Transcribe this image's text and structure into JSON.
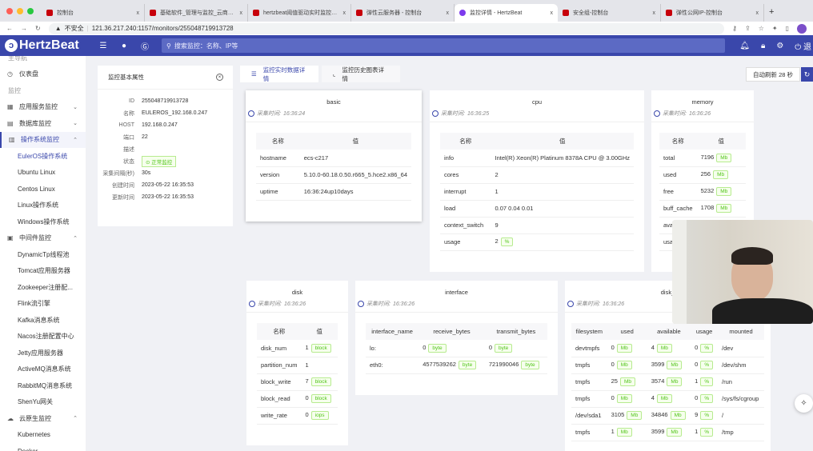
{
  "browser": {
    "tabs": [
      {
        "title": "控制台",
        "active": false
      },
      {
        "title": "基础软件_管理与监控_云商店-华",
        "active": false
      },
      {
        "title": "hertzbeat阈值驱动实时监控_监控",
        "active": false
      },
      {
        "title": "弹性云服务器 - 控制台",
        "active": false
      },
      {
        "title": "监控详情 - HertzBeat",
        "active": true
      },
      {
        "title": "安全组-控制台",
        "active": false
      },
      {
        "title": "弹性公网IP-控制台",
        "active": false
      }
    ],
    "close_glyph": "x",
    "new_tab": "+",
    "security_label": "不安全",
    "url": "121.36.217.240:1157/monitors/255048719913728"
  },
  "header": {
    "logo_text": "HertzBeat",
    "search_placeholder": "搜索监控：名称、IP等",
    "logout_partial": "退"
  },
  "sidebar": {
    "items": [
      {
        "label": "主导航",
        "type": "group"
      },
      {
        "label": "仪表盘",
        "type": "top",
        "icon": "dashboard-icon"
      },
      {
        "label": "监控",
        "type": "group"
      },
      {
        "label": "应用服务监控",
        "type": "top",
        "icon": "apps-icon",
        "chevron": "down"
      },
      {
        "label": "数据库监控",
        "type": "top",
        "icon": "database-icon",
        "chevron": "down"
      },
      {
        "label": "操作系统监控",
        "type": "top",
        "icon": "os-icon",
        "chevron": "up",
        "open": true
      },
      {
        "label": "EulerOS操作系统",
        "type": "sub",
        "selected": true
      },
      {
        "label": "Ubuntu Linux",
        "type": "sub"
      },
      {
        "label": "Centos Linux",
        "type": "sub"
      },
      {
        "label": "Linux操作系统",
        "type": "sub"
      },
      {
        "label": "Windows操作系统",
        "type": "sub"
      },
      {
        "label": "中间件监控",
        "type": "top",
        "icon": "middleware-icon",
        "chevron": "up"
      },
      {
        "label": "DynamicTp线程池",
        "type": "sub"
      },
      {
        "label": "Tomcat应用服务器",
        "type": "sub"
      },
      {
        "label": "Zookeeper注册配...",
        "type": "sub"
      },
      {
        "label": "Flink流引擎",
        "type": "sub"
      },
      {
        "label": "Kafka消息系统",
        "type": "sub"
      },
      {
        "label": "Nacos注册配置中心",
        "type": "sub"
      },
      {
        "label": "Jetty应用服务器",
        "type": "sub"
      },
      {
        "label": "ActiveMQ消息系统",
        "type": "sub"
      },
      {
        "label": "RabbitMQ消息系统",
        "type": "sub"
      },
      {
        "label": "ShenYu网关",
        "type": "sub"
      },
      {
        "label": "云原生监控",
        "type": "top",
        "icon": "cloud-icon",
        "chevron": "up"
      },
      {
        "label": "Kubernetes",
        "type": "sub"
      },
      {
        "label": "Docker",
        "type": "sub"
      }
    ]
  },
  "info": {
    "title": "监控基本属性",
    "rows": [
      {
        "key": "ID",
        "value": "255048719913728"
      },
      {
        "key": "名称",
        "value": "EULEROS_192.168.0.247"
      },
      {
        "key": "HOST",
        "value": "192.168.0.247"
      },
      {
        "key": "端口",
        "value": "22"
      },
      {
        "key": "描述",
        "value": ""
      },
      {
        "key": "状态",
        "value": "正常监控",
        "badge": true
      },
      {
        "key": "采集间隔(秒)",
        "value": "30s"
      },
      {
        "key": "创建时间",
        "value": "2023-05-22 16:35:53"
      },
      {
        "key": "更新时间",
        "value": "2023-05-22 16:35:53"
      }
    ]
  },
  "view_tabs": [
    {
      "label": "监控实时数据详情",
      "active": true
    },
    {
      "label": "监控历史图表详情",
      "active": false
    }
  ],
  "auto_refresh": "自动刷新 28 秒",
  "time_prefix": "采集时间:",
  "cards": [
    {
      "id": "basic",
      "title": "basic",
      "time": "16:36:24",
      "headers": [
        "名称",
        "值"
      ],
      "rows": [
        [
          [
            "hostname"
          ],
          [
            "ecs-c217"
          ]
        ],
        [
          [
            "version"
          ],
          [
            "5.10.0-60.18.0.50.r665_5.hce2.x86_64"
          ]
        ],
        [
          [
            "uptime"
          ],
          [
            "16:36:24up10days"
          ]
        ]
      ]
    },
    {
      "id": "cpu",
      "title": "cpu",
      "time": "16:36:25",
      "headers": [
        "名称",
        "值"
      ],
      "rows": [
        [
          [
            "info"
          ],
          [
            "Intel(R) Xeon(R) Platinum 8378A CPU @ 3.00GHz"
          ]
        ],
        [
          [
            "cores"
          ],
          [
            "2"
          ]
        ],
        [
          [
            "interrupt"
          ],
          [
            "1"
          ]
        ],
        [
          [
            "load"
          ],
          [
            "0.07 0.04 0.01"
          ]
        ],
        [
          [
            "context_switch"
          ],
          [
            "9"
          ]
        ],
        [
          [
            "usage"
          ],
          [
            "2",
            "%"
          ]
        ]
      ]
    },
    {
      "id": "memory",
      "title": "memory",
      "time": "16:36:26",
      "headers": [
        "名称",
        "值"
      ],
      "rows": [
        [
          [
            "total"
          ],
          [
            "7196",
            "Mb"
          ]
        ],
        [
          [
            "used"
          ],
          [
            "256",
            "Mb"
          ]
        ],
        [
          [
            "free"
          ],
          [
            "5232",
            "Mb"
          ]
        ],
        [
          [
            "buff_cache"
          ],
          [
            "1708",
            "Mb"
          ]
        ],
        [
          [
            "ava"
          ],
          [
            ""
          ]
        ],
        [
          [
            "usa"
          ],
          [
            ""
          ]
        ]
      ]
    },
    {
      "id": "disk",
      "title": "disk",
      "time": "16:36:26",
      "headers": [
        "名称",
        "值"
      ],
      "rows": [
        [
          [
            "disk_num"
          ],
          [
            "1",
            "block"
          ]
        ],
        [
          [
            "partition_num"
          ],
          [
            "1"
          ]
        ],
        [
          [
            "block_write"
          ],
          [
            "7",
            "block"
          ]
        ],
        [
          [
            "block_read"
          ],
          [
            "0",
            "block"
          ]
        ],
        [
          [
            "write_rate"
          ],
          [
            "0",
            "iops"
          ]
        ]
      ]
    },
    {
      "id": "interface",
      "title": "interface",
      "time": "16:36:26",
      "headers": [
        "interface_name",
        "receive_bytes",
        "transmit_bytes"
      ],
      "rows": [
        [
          [
            "lo:"
          ],
          [
            "0",
            "byte"
          ],
          [
            "0",
            "byte"
          ]
        ],
        [
          [
            "eth0:"
          ],
          [
            "4577539262",
            "byte"
          ],
          [
            "721990046",
            "byte"
          ]
        ]
      ]
    },
    {
      "id": "disk_free",
      "title": "disk_",
      "time": "16:36:26",
      "headers": [
        "filesystem",
        "used",
        "available",
        "usage",
        "mounted"
      ],
      "rows": [
        [
          [
            "devtmpfs"
          ],
          [
            "0",
            "Mb"
          ],
          [
            "4",
            "Mb"
          ],
          [
            "0",
            "%"
          ],
          [
            "/dev"
          ]
        ],
        [
          [
            "tmpfs"
          ],
          [
            "0",
            "Mb"
          ],
          [
            "3599",
            "Mb"
          ],
          [
            "0",
            "%"
          ],
          [
            "/dev/shm"
          ]
        ],
        [
          [
            "tmpfs"
          ],
          [
            "25",
            "Mb"
          ],
          [
            "3574",
            "Mb"
          ],
          [
            "1",
            "%"
          ],
          [
            "/run"
          ]
        ],
        [
          [
            "tmpfs"
          ],
          [
            "0",
            "Mb"
          ],
          [
            "4",
            "Mb"
          ],
          [
            "0",
            "%"
          ],
          [
            "/sys/fs/cgroup"
          ]
        ],
        [
          [
            "/dev/sda1"
          ],
          [
            "3105",
            "Mb"
          ],
          [
            "34846",
            "Mb"
          ],
          [
            "9",
            "%"
          ],
          [
            "/"
          ]
        ],
        [
          [
            "tmpfs"
          ],
          [
            "1",
            "Mb"
          ],
          [
            "3599",
            "Mb"
          ],
          [
            "1",
            "%"
          ],
          [
            "/tmp"
          ]
        ]
      ]
    }
  ]
}
